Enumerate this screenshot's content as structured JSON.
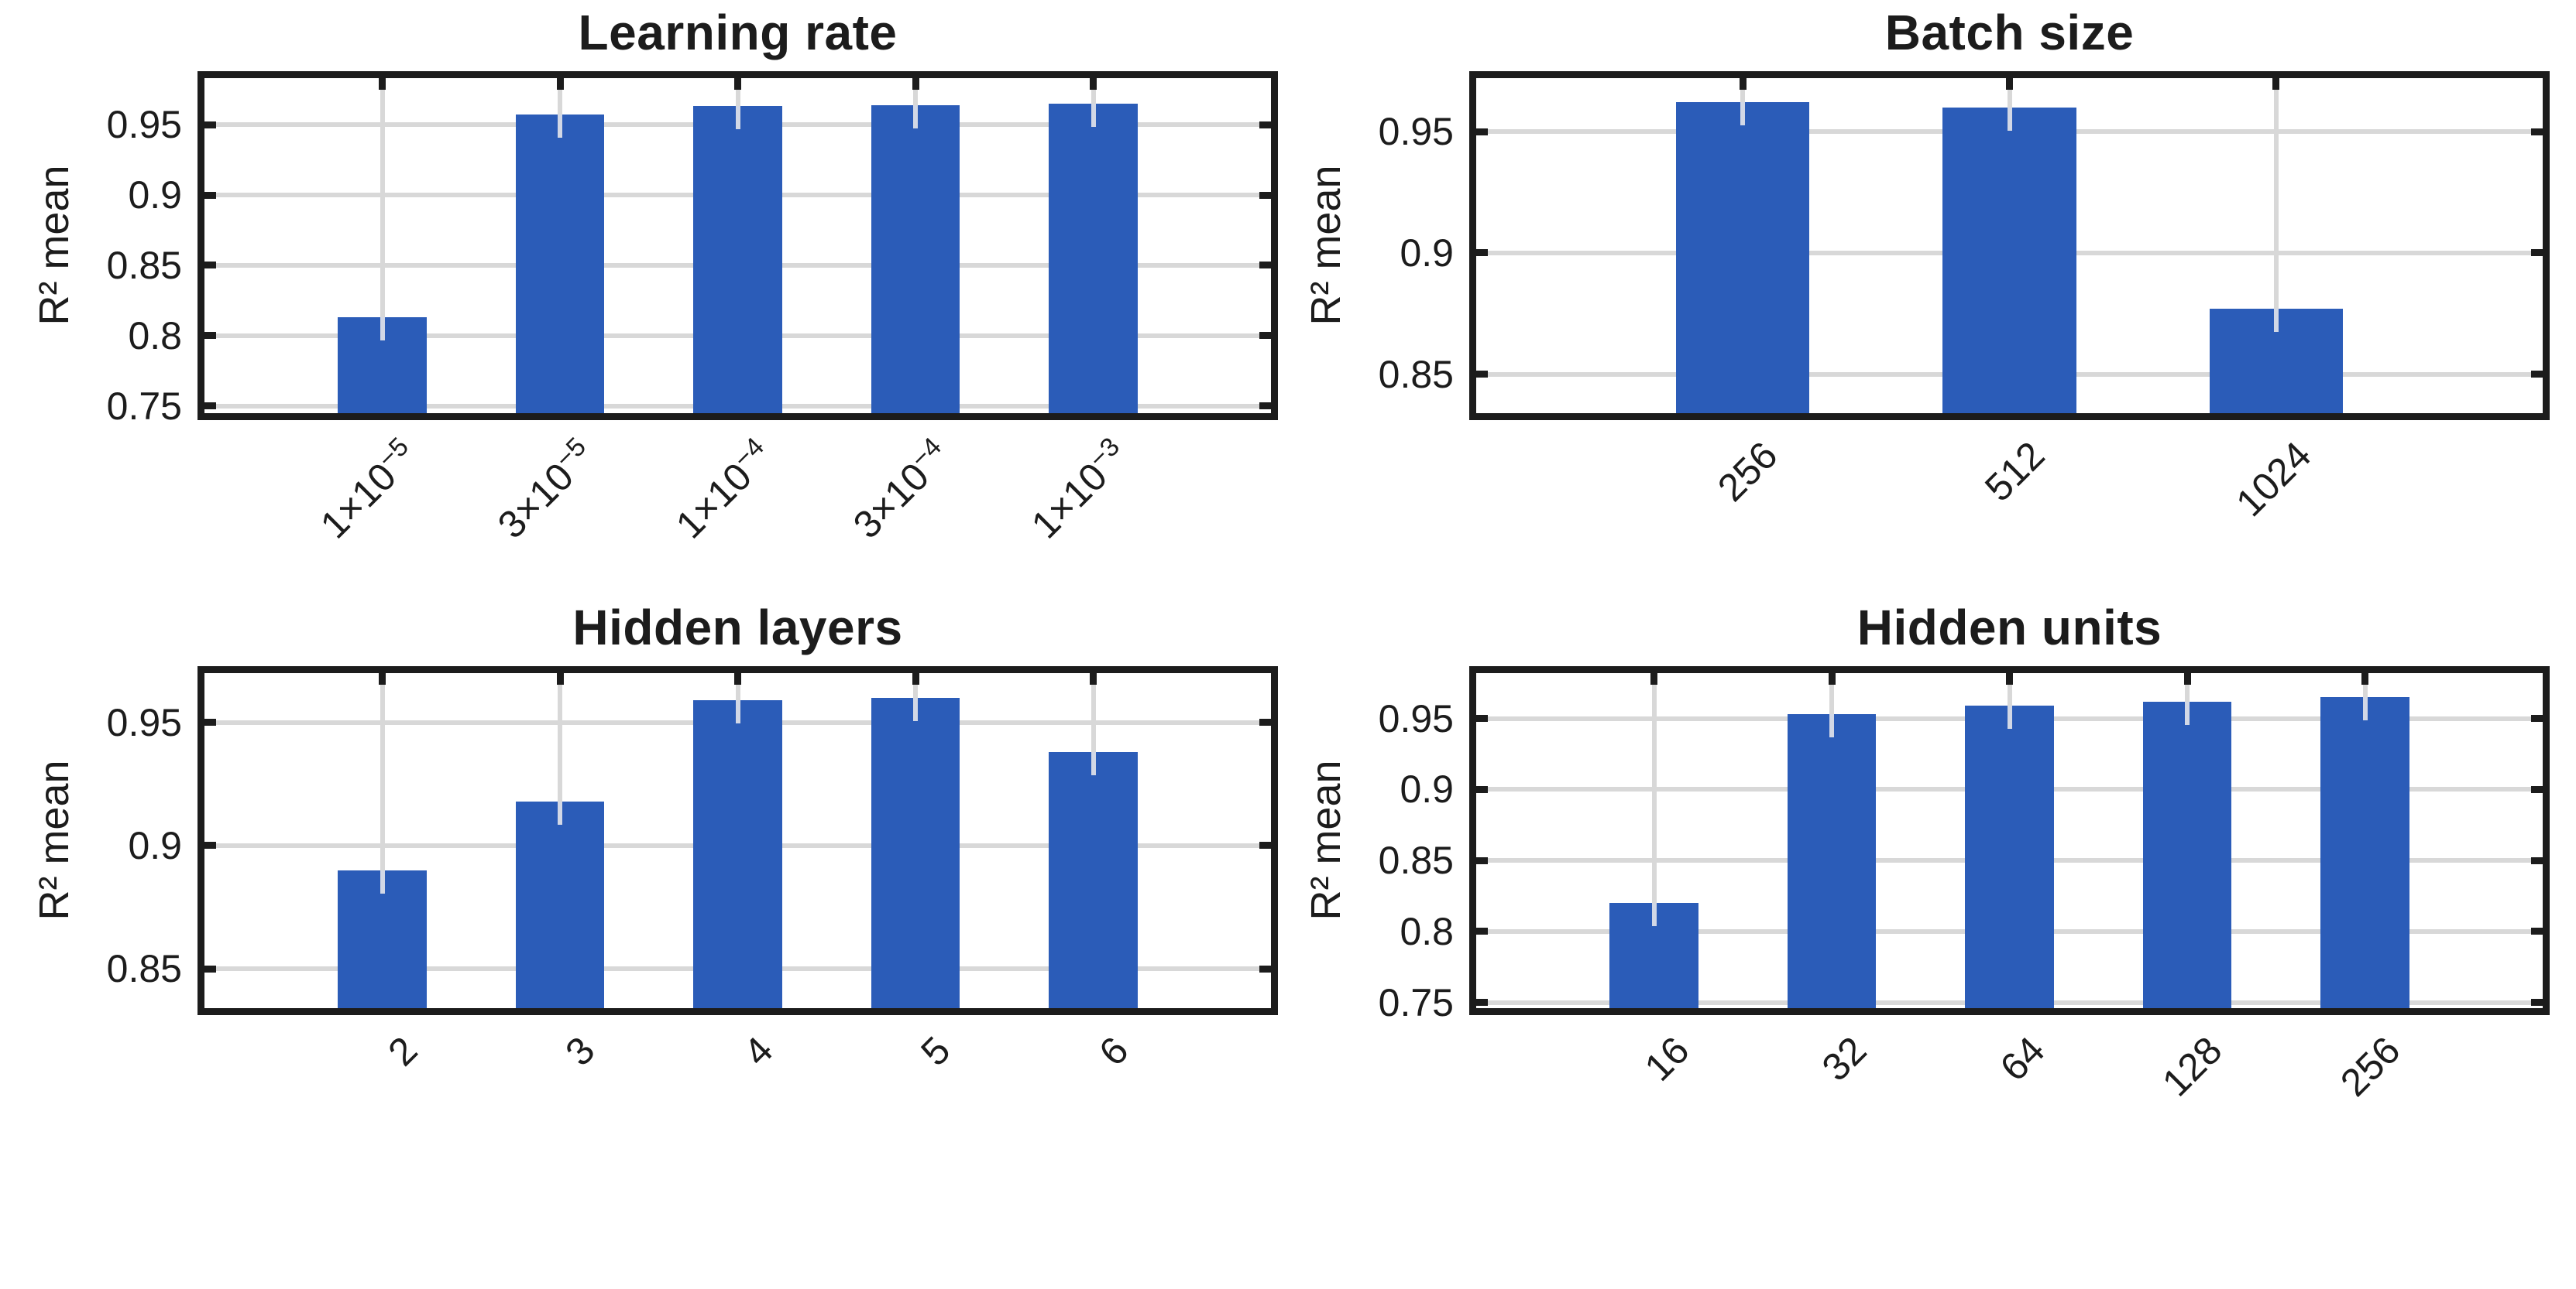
{
  "figure": {
    "background": "#ffffff",
    "bar_color": "#2b5cb8",
    "axis_color": "#1c1c1c",
    "grid_color": "#d8d8d8",
    "text_color": "#1c1c1c"
  },
  "chart_data": [
    {
      "type": "bar",
      "title": "Learning rate",
      "ylabel": "R²  mean",
      "categories": [
        {
          "base": "1×10",
          "sup": "−5"
        },
        {
          "base": "3×10",
          "sup": "−5"
        },
        {
          "base": "1×10",
          "sup": "−4"
        },
        {
          "base": "3×10",
          "sup": "−4"
        },
        {
          "base": "1×10",
          "sup": "−3"
        }
      ],
      "values": [
        0.813,
        0.957,
        0.963,
        0.964,
        0.965
      ],
      "yticks": [
        {
          "v": 0.75,
          "label": "0.75"
        },
        {
          "v": 0.8,
          "label": "0.8"
        },
        {
          "v": 0.85,
          "label": "0.85"
        },
        {
          "v": 0.9,
          "label": "0.9"
        },
        {
          "v": 0.95,
          "label": "0.95"
        }
      ],
      "ylim": [
        0.745,
        0.983
      ],
      "grid": true,
      "legend": null
    },
    {
      "type": "bar",
      "title": "Batch size",
      "ylabel": "R²  mean",
      "categories": [
        "256",
        "512",
        "1024"
      ],
      "values": [
        0.962,
        0.96,
        0.877
      ],
      "yticks": [
        {
          "v": 0.85,
          "label": "0.85"
        },
        {
          "v": 0.9,
          "label": "0.9"
        },
        {
          "v": 0.95,
          "label": "0.95"
        }
      ],
      "ylim": [
        0.834,
        0.972
      ],
      "grid": true,
      "legend": null
    },
    {
      "type": "bar",
      "title": "Hidden layers",
      "ylabel": "R²  mean",
      "categories": [
        "2",
        "3",
        "4",
        "5",
        "6"
      ],
      "values": [
        0.89,
        0.918,
        0.959,
        0.96,
        0.938
      ],
      "yticks": [
        {
          "v": 0.85,
          "label": "0.85"
        },
        {
          "v": 0.9,
          "label": "0.9"
        },
        {
          "v": 0.95,
          "label": "0.95"
        }
      ],
      "ylim": [
        0.834,
        0.97
      ],
      "grid": true,
      "legend": null
    },
    {
      "type": "bar",
      "title": "Hidden units",
      "ylabel": "R²  mean",
      "categories": [
        "16",
        "32",
        "64",
        "128",
        "256"
      ],
      "values": [
        0.82,
        0.953,
        0.959,
        0.962,
        0.965
      ],
      "yticks": [
        {
          "v": 0.75,
          "label": "0.75"
        },
        {
          "v": 0.8,
          "label": "0.8"
        },
        {
          "v": 0.85,
          "label": "0.85"
        },
        {
          "v": 0.9,
          "label": "0.9"
        },
        {
          "v": 0.95,
          "label": "0.95"
        }
      ],
      "ylim": [
        0.746,
        0.982
      ],
      "grid": true,
      "legend": null
    }
  ]
}
